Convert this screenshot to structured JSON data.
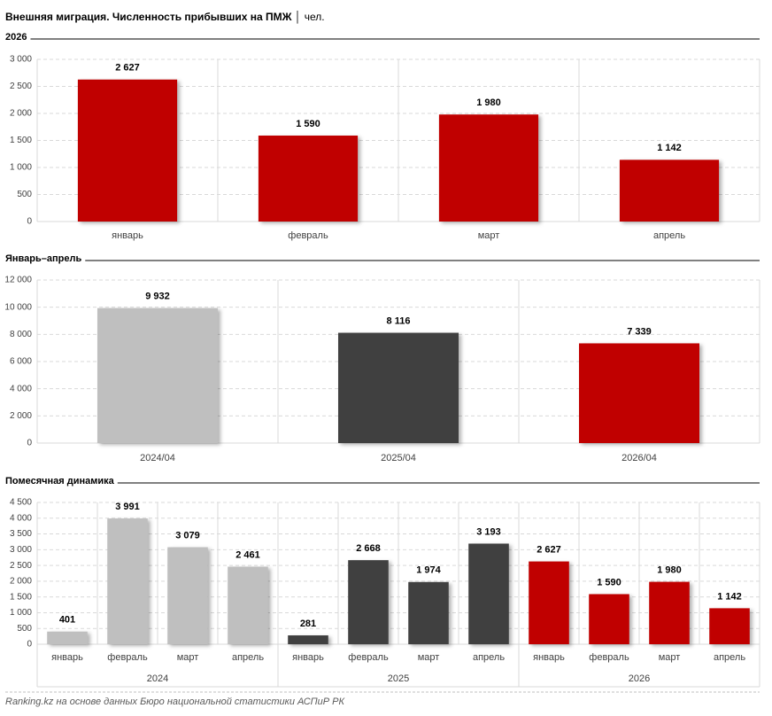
{
  "title": "Внешняя миграция. Численность прибывших на ПМЖ",
  "unit": "чел.",
  "source": "Ranking.kz на основе данных Бюро национальной статистики АСПиР РК",
  "chart_data": [
    {
      "type": "bar",
      "title": "2026",
      "categories": [
        "январь",
        "февраль",
        "март",
        "апрель"
      ],
      "values": [
        2627,
        1590,
        1980,
        1142
      ],
      "value_labels": [
        "2 627",
        "1 590",
        "1 980",
        "1 142"
      ],
      "colors": [
        "#c00000",
        "#c00000",
        "#c00000",
        "#c00000"
      ],
      "ylim": [
        0,
        3000
      ],
      "yticks": [
        0,
        500,
        {
          "value": 1000,
          "label": "1 000"
        },
        {
          "value": 1500,
          "label": "1 500"
        },
        {
          "value": 2000,
          "label": "2 000"
        },
        {
          "value": 2500,
          "label": "2 500"
        },
        {
          "value": 3000,
          "label": "3 000"
        }
      ],
      "grid": true
    },
    {
      "type": "bar",
      "title": "Январь–апрель",
      "categories": [
        "2024/04",
        "2025/04",
        "2026/04"
      ],
      "values": [
        9932,
        8116,
        7339
      ],
      "value_labels": [
        "9 932",
        "8 116",
        "7 339"
      ],
      "colors": [
        "#bfbfbf",
        "#404040",
        "#c00000"
      ],
      "ylim": [
        0,
        12000
      ],
      "yticks": [
        0,
        {
          "value": 2000,
          "label": "2 000"
        },
        {
          "value": 4000,
          "label": "4 000"
        },
        {
          "value": 6000,
          "label": "6 000"
        },
        {
          "value": 8000,
          "label": "8 000"
        },
        {
          "value": 10000,
          "label": "10 000"
        },
        {
          "value": 12000,
          "label": "12 000"
        }
      ],
      "grid": true
    },
    {
      "type": "bar",
      "title": "Помесячная динамика",
      "categories": [
        "январь",
        "февраль",
        "март",
        "апрель",
        "январь",
        "февраль",
        "март",
        "апрель",
        "январь",
        "февраль",
        "март",
        "апрель"
      ],
      "groups": [
        "2024",
        "2025",
        "2026"
      ],
      "values": [
        401,
        3991,
        3079,
        2461,
        281,
        2668,
        1974,
        3193,
        2627,
        1590,
        1980,
        1142
      ],
      "value_labels": [
        "401",
        "3 991",
        "3 079",
        "2 461",
        "281",
        "2 668",
        "1 974",
        "3 193",
        "2 627",
        "1 590",
        "1 980",
        "1 142"
      ],
      "colors": [
        "#bfbfbf",
        "#bfbfbf",
        "#bfbfbf",
        "#bfbfbf",
        "#404040",
        "#404040",
        "#404040",
        "#404040",
        "#c00000",
        "#c00000",
        "#c00000",
        "#c00000"
      ],
      "ylim": [
        0,
        4500
      ],
      "yticks": [
        0,
        500,
        {
          "value": 1000,
          "label": "1 000"
        },
        {
          "value": 1500,
          "label": "1 500"
        },
        {
          "value": 2000,
          "label": "2 000"
        },
        {
          "value": 2500,
          "label": "2 500"
        },
        {
          "value": 3000,
          "label": "3 000"
        },
        {
          "value": 3500,
          "label": "3 500"
        },
        {
          "value": 4000,
          "label": "4 000"
        },
        {
          "value": 4500,
          "label": "4 500"
        }
      ],
      "grid": true
    }
  ]
}
